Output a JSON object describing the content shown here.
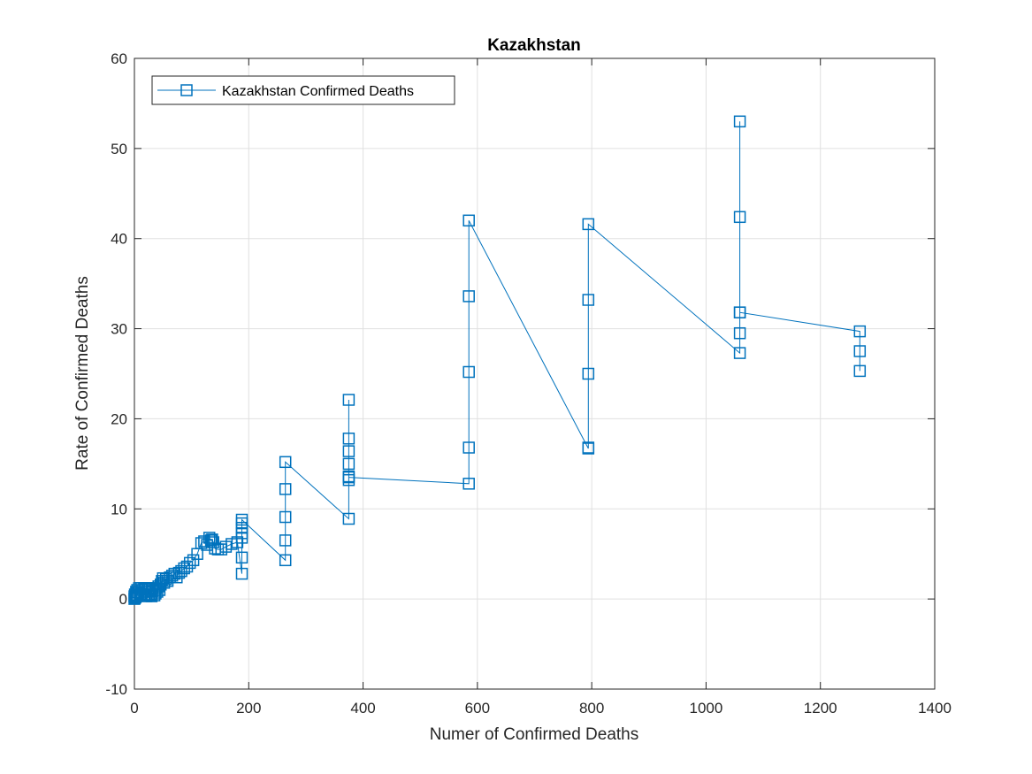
{
  "chart_data": {
    "type": "line",
    "title": "Kazakhstan",
    "xlabel": "Numer of Confirmed Deaths",
    "ylabel": "Rate of Confirmed Deaths",
    "xlim": [
      0,
      1400
    ],
    "ylim": [
      -10,
      60
    ],
    "xticks": [
      0,
      200,
      400,
      600,
      800,
      1000,
      1200,
      1400
    ],
    "yticks": [
      -10,
      0,
      10,
      20,
      30,
      40,
      50,
      60
    ],
    "xtick_labels": [
      "0",
      "200",
      "400",
      "600",
      "800",
      "1000",
      "1200",
      "1400"
    ],
    "ytick_labels": [
      "-10",
      "0",
      "10",
      "20",
      "30",
      "40",
      "50",
      "60"
    ],
    "grid": true,
    "legend_position": "top-left",
    "marker": "square",
    "color": "#0072bd",
    "series": [
      {
        "name": "Kazakhstan Confirmed Deaths",
        "x": [
          0,
          0,
          1,
          1,
          2,
          3,
          3,
          5,
          5,
          6,
          8,
          10,
          12,
          13,
          14,
          17,
          17,
          19,
          19,
          21,
          24,
          25,
          25,
          27,
          28,
          30,
          31,
          32,
          35,
          36,
          37,
          38,
          40,
          42,
          44,
          46,
          48,
          50,
          52,
          55,
          58,
          62,
          66,
          70,
          74,
          78,
          82,
          87,
          92,
          97,
          103,
          110,
          117,
          122,
          127,
          131,
          134,
          136,
          138,
          141,
          146,
          152,
          160,
          170,
          180,
          188,
          188,
          188,
          188,
          188,
          188,
          188,
          264,
          264,
          264,
          264,
          264,
          375,
          375,
          375,
          375,
          375,
          375,
          375,
          375,
          585,
          585,
          585,
          585,
          585,
          794,
          794,
          794,
          794,
          794,
          1059,
          1059,
          1059,
          1059,
          1059,
          1059,
          1269,
          1269,
          1269
        ],
        "y": [
          0,
          0.3,
          0.1,
          0.5,
          0.2,
          0.8,
          0.3,
          1.0,
          0.4,
          0.7,
          1.2,
          0.5,
          1.2,
          0.6,
          1.0,
          1.2,
          0.4,
          0.8,
          1.1,
          0.3,
          1.2,
          0.4,
          0.8,
          1.1,
          0.5,
          0.3,
          0.9,
          1.2,
          0.4,
          1.0,
          0.6,
          1.2,
          0.8,
          1.4,
          1.0,
          1.6,
          2.0,
          2.3,
          1.8,
          2.2,
          2.0,
          2.4,
          2.6,
          2.8,
          2.4,
          2.9,
          3.1,
          3.4,
          3.6,
          4.0,
          4.3,
          5.0,
          6.2,
          6.4,
          6.0,
          6.8,
          6.5,
          6.6,
          6.3,
          5.6,
          5.5,
          5.5,
          5.8,
          6.1,
          6.3,
          2.8,
          4.6,
          6.8,
          7.3,
          7.9,
          8.4,
          8.8,
          4.3,
          6.5,
          9.1,
          12.2,
          15.2,
          8.9,
          13.2,
          13.6,
          15.0,
          16.4,
          17.8,
          22.1,
          13.5,
          12.8,
          16.8,
          25.2,
          33.6,
          42.0,
          16.7,
          16.8,
          25.0,
          33.2,
          41.6,
          27.3,
          29.5,
          31.8,
          42.4,
          53.0,
          31.8,
          29.7,
          27.5,
          25.3
        ]
      }
    ]
  }
}
